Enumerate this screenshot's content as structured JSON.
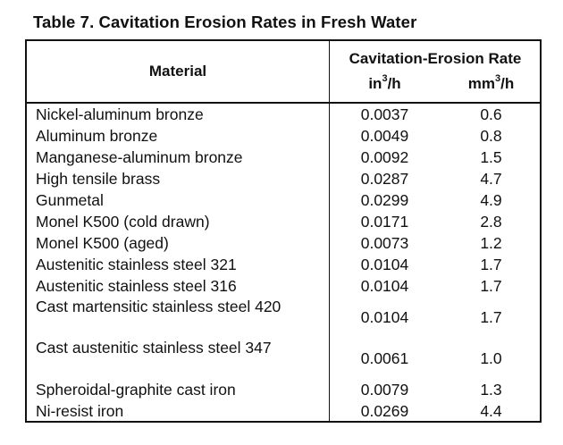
{
  "caption": "Table 7.  Cavitation Erosion Rates in Fresh Water",
  "headers": {
    "material": "Material",
    "group": "Cavitation-Erosion Rate",
    "unit1_base": "in",
    "unit1_sup": "3",
    "unit1_tail": "/h",
    "unit2_base": "mm",
    "unit2_sup": "3",
    "unit2_tail": "/h"
  },
  "rows": [
    {
      "material": "Nickel-aluminum bronze",
      "in3h": "0.0037",
      "mm3h": "0.6"
    },
    {
      "material": "Aluminum bronze",
      "in3h": "0.0049",
      "mm3h": "0.8"
    },
    {
      "material": "Manganese-aluminum bronze",
      "in3h": "0.0092",
      "mm3h": "1.5"
    },
    {
      "material": "High tensile brass",
      "in3h": "0.0287",
      "mm3h": "4.7"
    },
    {
      "material": "Gunmetal",
      "in3h": "0.0299",
      "mm3h": "4.9"
    },
    {
      "material": "Monel K500 (cold drawn)",
      "in3h": "0.0171",
      "mm3h": "2.8"
    },
    {
      "material": "Monel K500 (aged)",
      "in3h": "0.0073",
      "mm3h": "1.2"
    },
    {
      "material": "Austenitic stainless steel 321",
      "in3h": "0.0104",
      "mm3h": "1.7"
    },
    {
      "material": "Austenitic stainless steel 316",
      "in3h": "0.0104",
      "mm3h": "1.7"
    },
    {
      "material": "Cast martensitic stainless steel 420",
      "in3h": "0.0104",
      "mm3h": "1.7"
    },
    {
      "material": "Cast austenitic stainless steel 347",
      "in3h": "0.0061",
      "mm3h": "1.0"
    },
    {
      "material": "Spheroidal-graphite cast iron",
      "in3h": "0.0079",
      "mm3h": "1.3"
    },
    {
      "material": "Ni-resist iron",
      "in3h": "0.0269",
      "mm3h": "4.4"
    }
  ]
}
